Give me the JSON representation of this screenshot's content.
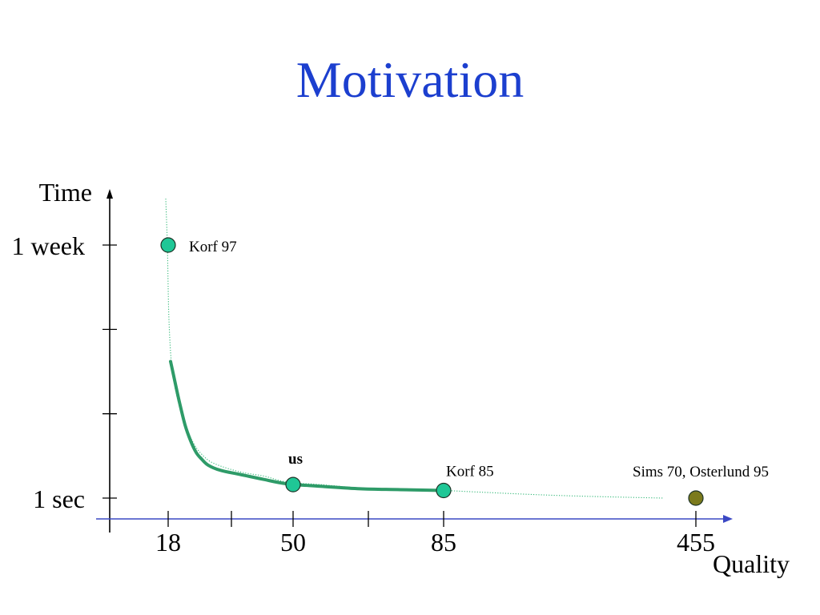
{
  "slide": {
    "title": "Motivation"
  },
  "colors": {
    "title": "#1c3fcf",
    "x_axis": "#3b48c4",
    "y_axis": "#000000",
    "ticks": "#000000",
    "point_stroke": "#1e3326",
    "curve_solid": "#2e9b68",
    "curve_dotted": "#34b878"
  },
  "chart_data": {
    "type": "scatter",
    "xlabel": "Quality",
    "ylabel": "Time",
    "x_ticks": [
      "18",
      "",
      "50",
      "",
      "85",
      "455"
    ],
    "y_ticks": [
      "1 sec",
      "",
      "",
      "1 week"
    ],
    "points": [
      {
        "label": "Korf 97",
        "x": 18,
        "y": 3,
        "fill": "#1fc796"
      },
      {
        "label": "us",
        "x": 50,
        "y": 0.16,
        "fill": "#1fc796"
      },
      {
        "label": "Korf 85",
        "x": 85,
        "y": 0.09,
        "fill": "#1fc796"
      },
      {
        "label": "Sims 70, Osterlund 95",
        "x": 455,
        "y": 0,
        "fill": "#7b7a1c"
      }
    ],
    "curves": {
      "dotted": [
        [
          17.38,
          3.55
        ],
        [
          17.79,
          3.0
        ],
        [
          18.0,
          2.49
        ],
        [
          18.21,
          2.11
        ],
        [
          18.62,
          1.73
        ],
        [
          19.23,
          1.44
        ],
        [
          21.08,
          1.06
        ],
        [
          24.15,
          0.68
        ],
        [
          27.23,
          0.49
        ],
        [
          30.31,
          0.4
        ],
        [
          36.46,
          0.31
        ],
        [
          42.62,
          0.26
        ],
        [
          48.36,
          0.19
        ],
        [
          56.33,
          0.16
        ],
        [
          65.64,
          0.12
        ],
        [
          74.95,
          0.1
        ],
        [
          85,
          0.09
        ],
        [
          139.03,
          0.07
        ],
        [
          256.49,
          0.03
        ],
        [
          406.84,
          0
        ]
      ],
      "solid": [
        [
          18.62,
          1.62
        ],
        [
          19.64,
          1.4
        ],
        [
          20.87,
          1.14
        ],
        [
          22.31,
          0.87
        ],
        [
          23.74,
          0.68
        ],
        [
          25.18,
          0.54
        ],
        [
          26.62,
          0.46
        ],
        [
          28.26,
          0.39
        ],
        [
          31.33,
          0.33
        ],
        [
          36.46,
          0.28
        ],
        [
          42.62,
          0.22
        ],
        [
          48.36,
          0.17
        ],
        [
          56.33,
          0.14
        ],
        [
          65.64,
          0.11
        ],
        [
          74.95,
          0.1
        ],
        [
          85,
          0.09
        ]
      ]
    }
  }
}
